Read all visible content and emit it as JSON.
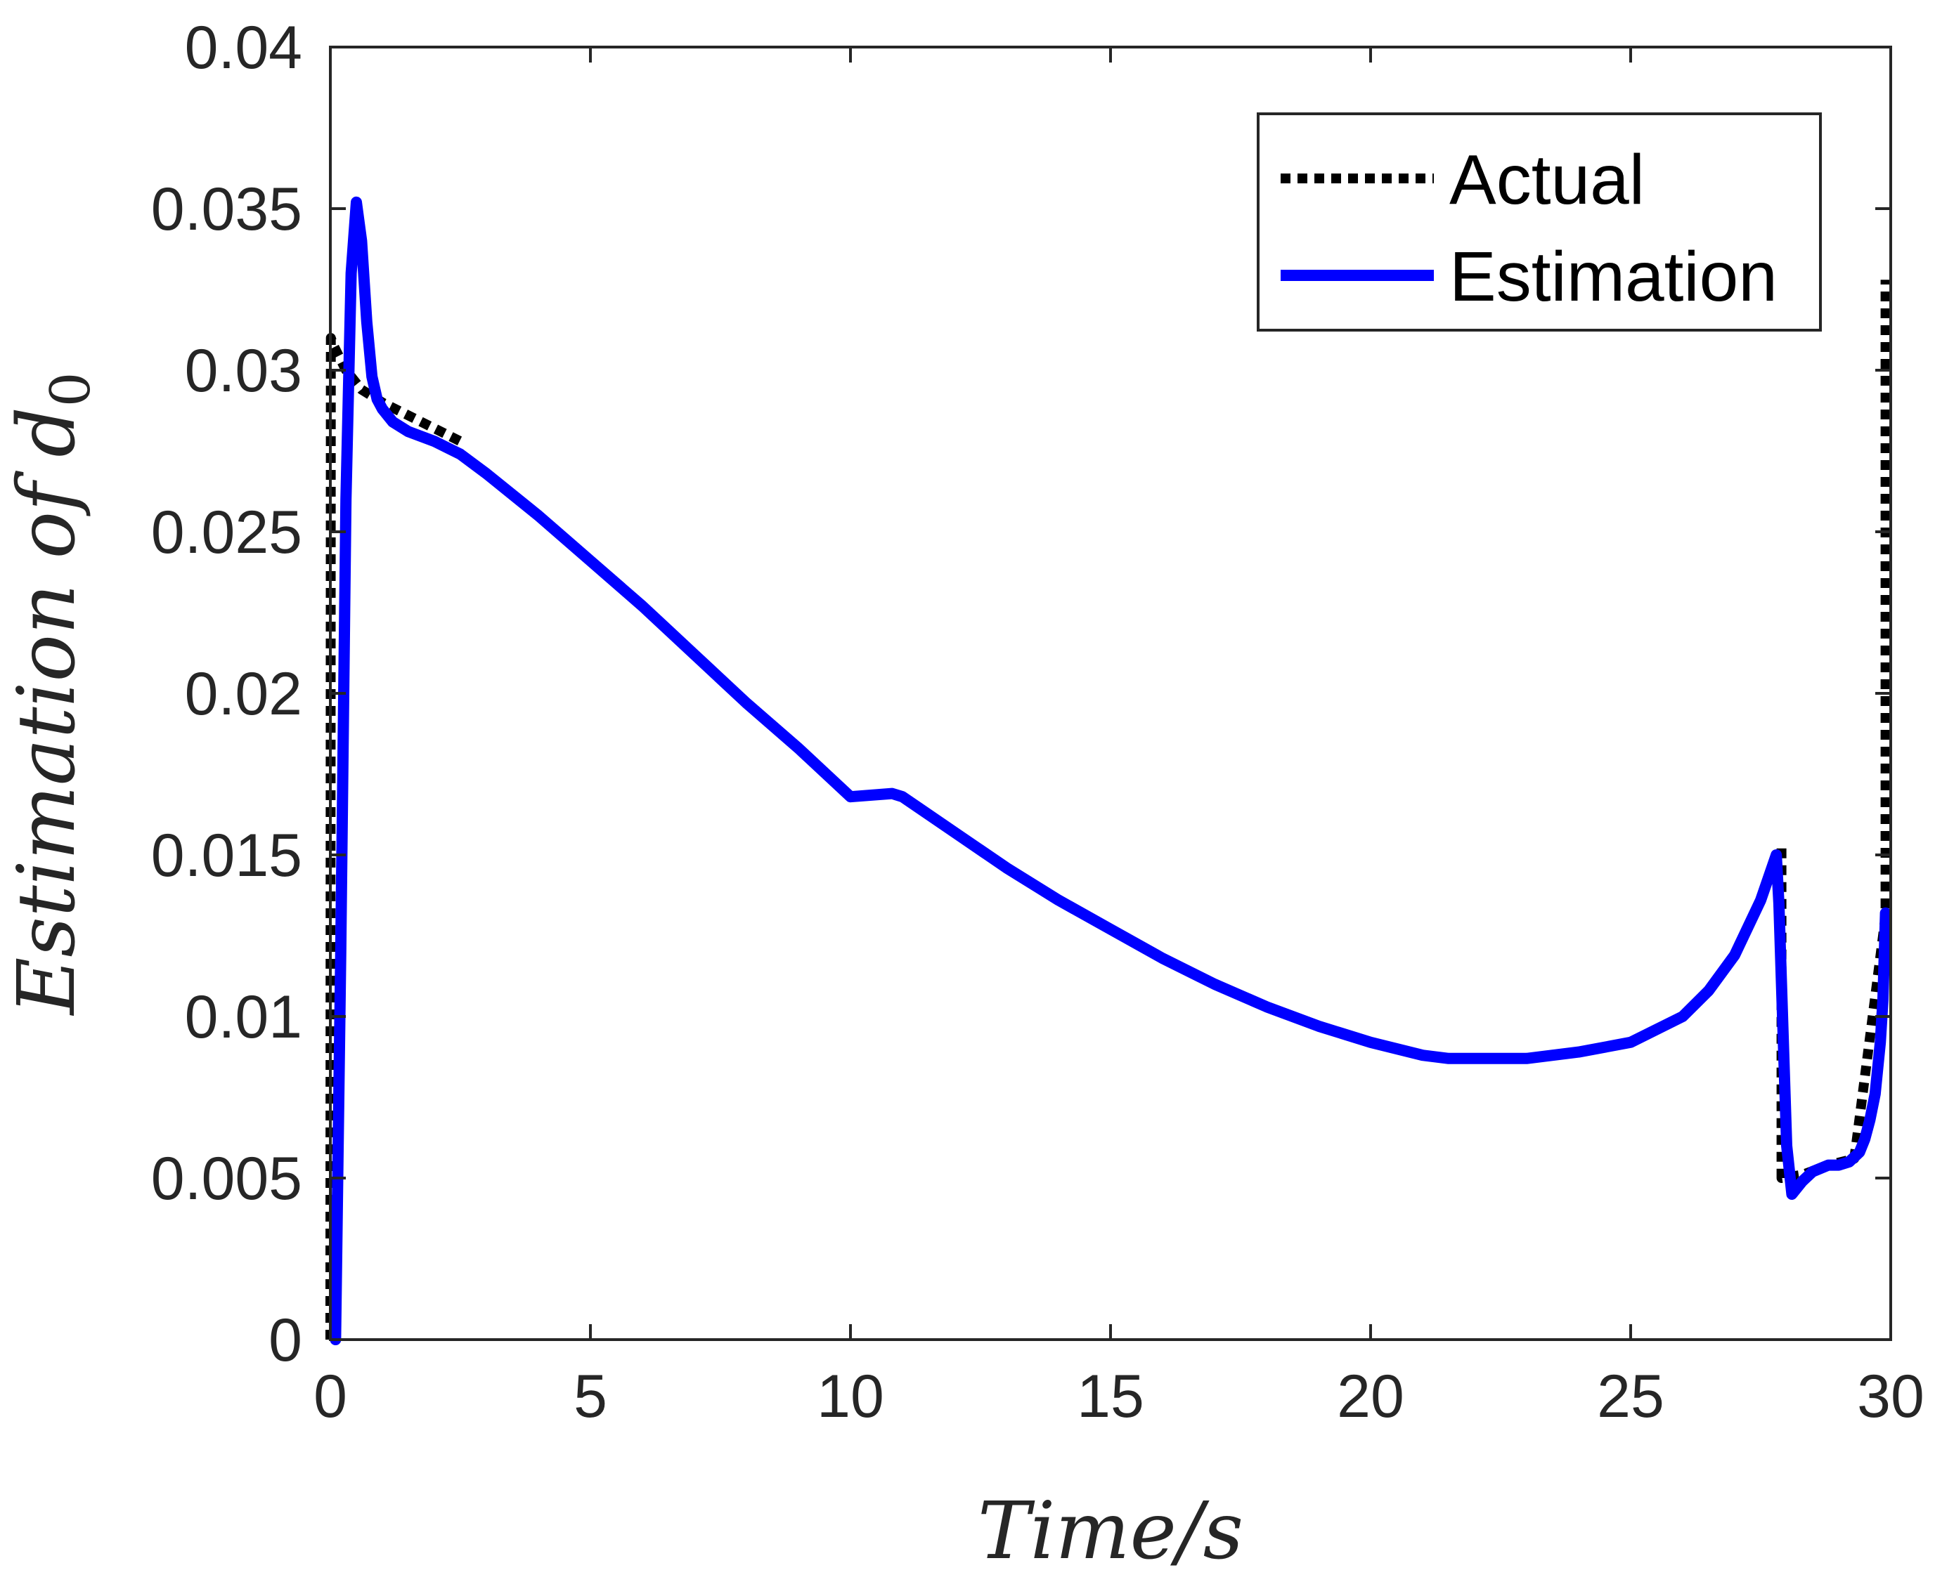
{
  "chart_data": {
    "type": "line",
    "title": "",
    "xlabel": "Time/s",
    "ylabel_main": "Estimation of d",
    "ylabel_sub": "0",
    "xlim": [
      0,
      30
    ],
    "ylim": [
      0,
      0.04
    ],
    "xticks": [
      0,
      5,
      10,
      15,
      20,
      25,
      30
    ],
    "xtick_labels": [
      "0",
      "5",
      "10",
      "15",
      "20",
      "25",
      "30"
    ],
    "yticks": [
      0,
      0.005,
      0.01,
      0.015,
      0.02,
      0.025,
      0.03,
      0.035,
      0.04
    ],
    "ytick_labels": [
      "0",
      "0.005",
      "0.01",
      "0.015",
      "0.02",
      "0.025",
      "0.03",
      "0.035",
      "0.04"
    ],
    "grid": false,
    "legend_position": "top-right",
    "series": [
      {
        "name": "Actual",
        "color": "#000000",
        "style": "dotted",
        "x": [
          0,
          0.01,
          0.05,
          0.3,
          0.6,
          1.0,
          1.5,
          2.0,
          2.5,
          2.6
        ],
        "y": [
          0,
          0.031,
          0.0308,
          0.03,
          0.0294,
          0.029,
          0.0286,
          0.0282,
          0.0278,
          0.0277
        ],
        "x2": [
          27.9,
          27.9,
          28.3,
          28.8,
          29.3,
          29.9,
          29.9
        ],
        "y2": [
          0.0152,
          0.005,
          0.0051,
          0.0054,
          0.0056,
          0.0131,
          0.0328
        ]
      },
      {
        "name": "Estimation",
        "color": "#0000ff",
        "style": "solid",
        "x": [
          0.1,
          0.2,
          0.3,
          0.4,
          0.5,
          0.6,
          0.7,
          0.8,
          0.9,
          1.0,
          1.2,
          1.5,
          2.0,
          2.5,
          3,
          4,
          5,
          6,
          7,
          8,
          9,
          10,
          10.8,
          11.0,
          12,
          13,
          14,
          15,
          16,
          17,
          18,
          19,
          20,
          21,
          21.5,
          22,
          22.5,
          23,
          24,
          25,
          26,
          26.5,
          27,
          27.5,
          27.8,
          27.85,
          28.0,
          28.1,
          28.3,
          28.5,
          28.8,
          29.0,
          29.2,
          29.4,
          29.5,
          29.6,
          29.7,
          29.8,
          29.85,
          29.9
        ],
        "y": [
          0.0,
          0.012,
          0.026,
          0.033,
          0.0352,
          0.034,
          0.0315,
          0.0298,
          0.0291,
          0.0288,
          0.0284,
          0.0281,
          0.0278,
          0.0274,
          0.0268,
          0.0255,
          0.0241,
          0.0227,
          0.0212,
          0.0197,
          0.0183,
          0.0168,
          0.0169,
          0.0168,
          0.0157,
          0.0146,
          0.0136,
          0.0127,
          0.0118,
          0.011,
          0.0103,
          0.0097,
          0.0092,
          0.0088,
          0.0087,
          0.0087,
          0.0087,
          0.0087,
          0.0089,
          0.0092,
          0.01,
          0.0108,
          0.0119,
          0.0136,
          0.015,
          0.0135,
          0.006,
          0.0045,
          0.0049,
          0.0052,
          0.0054,
          0.0054,
          0.0055,
          0.0058,
          0.0062,
          0.0068,
          0.0076,
          0.0092,
          0.0105,
          0.0132
        ]
      }
    ]
  }
}
